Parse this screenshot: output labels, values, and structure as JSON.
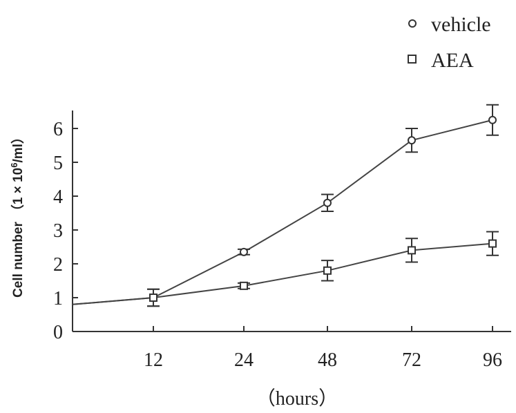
{
  "chart_data": {
    "type": "line",
    "categories": [
      "12",
      "24",
      "48",
      "72",
      "96"
    ],
    "xlabel": "（hours）",
    "ylabel": "Cell number （1 × 10⁶/ml）",
    "ylabel_main": "Cell number",
    "ylabel_unit": "（1 × 10",
    "ylabel_exp": "6",
    "ylabel_tail": "/ml）",
    "ylim": [
      0,
      6.5
    ],
    "yticks": [
      "0",
      "1",
      "2",
      "3",
      "4",
      "5",
      "6"
    ],
    "start_value": 0.8,
    "series": [
      {
        "name": "vehicle",
        "marker": "circle",
        "values": [
          1.0,
          2.35,
          3.8,
          5.65,
          6.25
        ],
        "err": [
          0.25,
          0.08,
          0.25,
          0.35,
          0.45
        ]
      },
      {
        "name": "AEA",
        "marker": "square",
        "values": [
          1.0,
          1.35,
          1.8,
          2.4,
          2.6
        ],
        "err": [
          0.25,
          0.08,
          0.3,
          0.35,
          0.35
        ]
      }
    ],
    "legend_position": "top-right"
  }
}
